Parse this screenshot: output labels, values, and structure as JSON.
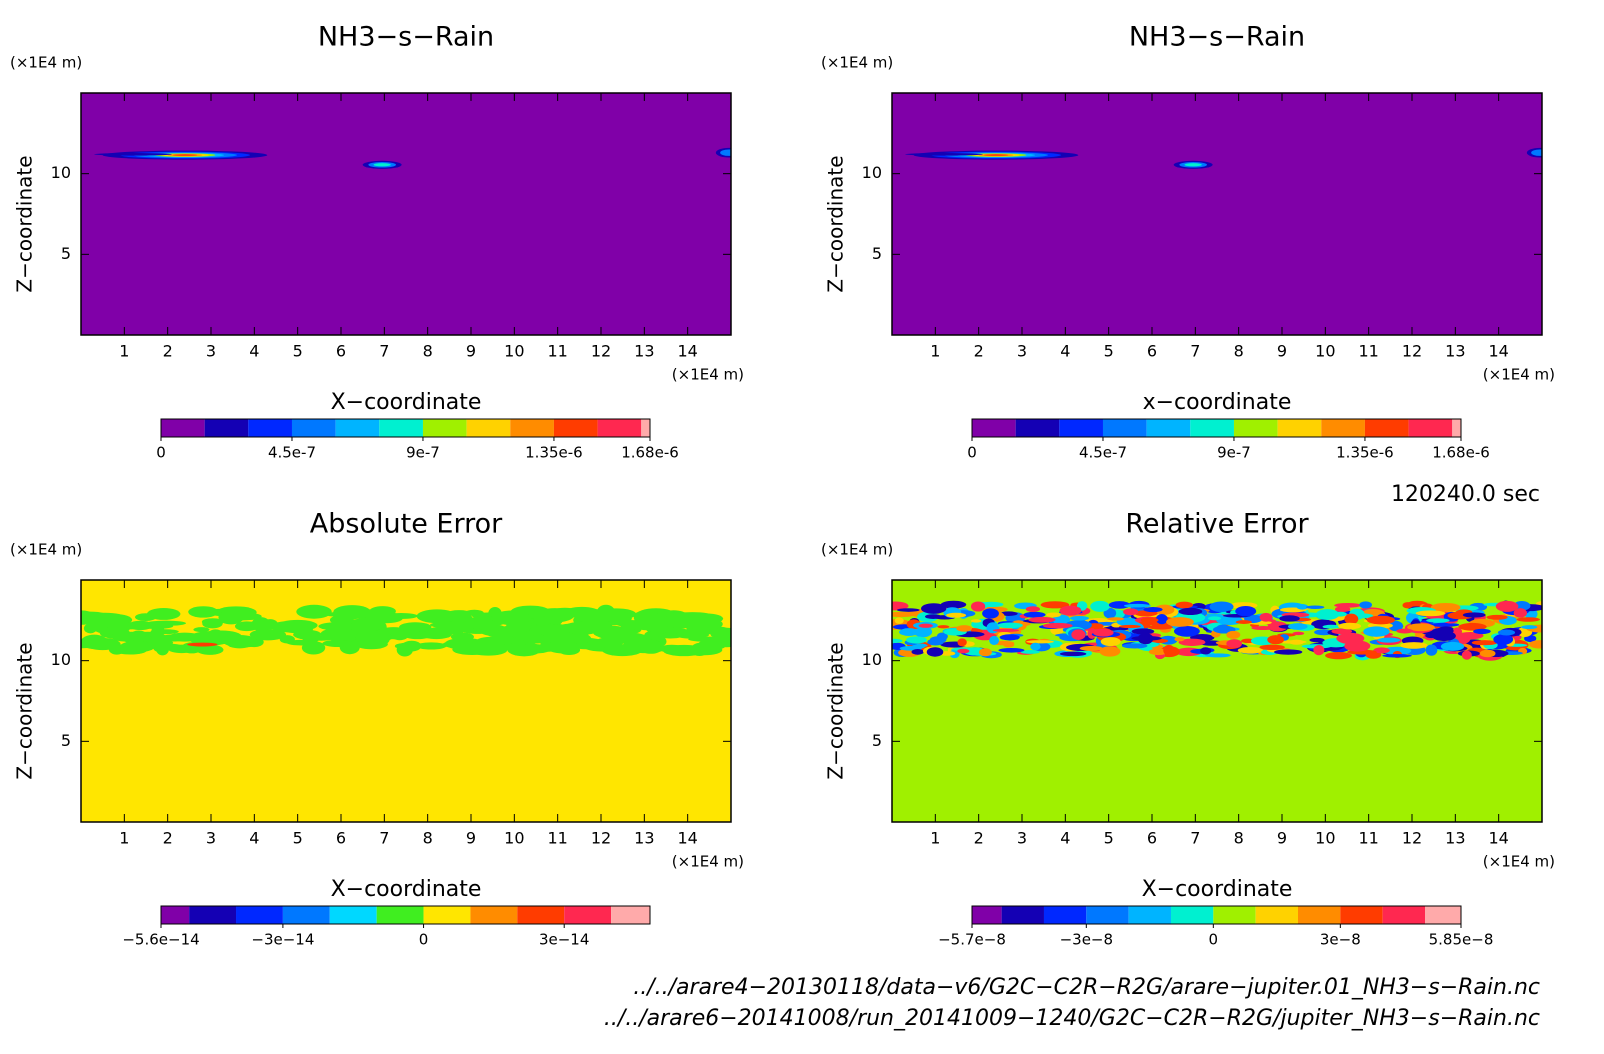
{
  "chart_data": [
    {
      "type": "contour",
      "title": "NH3−s−Rain",
      "xlabel": "X−coordinate",
      "ylabel": "Z−coordinate",
      "xunit": "(×1E4 m)",
      "yunit": "(×1E4 m)",
      "xlim": [
        0,
        15
      ],
      "ylim": [
        0,
        15
      ],
      "xticks": [
        1,
        2,
        3,
        4,
        5,
        6,
        7,
        8,
        9,
        10,
        11,
        12,
        13,
        14
      ],
      "yticks": [
        5,
        10
      ],
      "field_color": "#8000a8",
      "pattern": "rain",
      "colorbar": {
        "levels": [
          0,
          1.5e-07,
          3e-07,
          4.5e-07,
          6e-07,
          7.5e-07,
          9e-07,
          1.05e-06,
          1.2e-06,
          1.35e-06,
          1.5e-06,
          1.65e-06,
          1.68e-06
        ],
        "colors": [
          "#8000a8",
          "#1400b4",
          "#0028ff",
          "#0078ff",
          "#00b4ff",
          "#00f0d0",
          "#a0f000",
          "#ffd200",
          "#ff8c00",
          "#ff3c00",
          "#ff2850",
          "#ffaaaa"
        ],
        "ticks": [
          {
            "value": 0,
            "label": "0"
          },
          {
            "value": 4.5e-07,
            "label": "4.5e-7"
          },
          {
            "value": 9e-07,
            "label": "9e-7"
          },
          {
            "value": 1.35e-06,
            "label": "1.35e-6"
          },
          {
            "value": 1.68e-06,
            "label": "1.68e-6"
          }
        ]
      }
    },
    {
      "type": "contour",
      "title": "NH3−s−Rain",
      "xlabel": "x−coordinate",
      "ylabel": "Z−coordinate",
      "xunit": "(×1E4 m)",
      "yunit": "(×1E4 m)",
      "xlim": [
        0,
        15
      ],
      "ylim": [
        0,
        15
      ],
      "xticks": [
        1,
        2,
        3,
        4,
        5,
        6,
        7,
        8,
        9,
        10,
        11,
        12,
        13,
        14
      ],
      "yticks": [
        5,
        10
      ],
      "field_color": "#8000a8",
      "pattern": "rain",
      "colorbar": {
        "levels": [
          0,
          1.5e-07,
          3e-07,
          4.5e-07,
          6e-07,
          7.5e-07,
          9e-07,
          1.05e-06,
          1.2e-06,
          1.35e-06,
          1.5e-06,
          1.65e-06,
          1.68e-06
        ],
        "colors": [
          "#8000a8",
          "#1400b4",
          "#0028ff",
          "#0078ff",
          "#00b4ff",
          "#00f0d0",
          "#a0f000",
          "#ffd200",
          "#ff8c00",
          "#ff3c00",
          "#ff2850",
          "#ffaaaa"
        ],
        "ticks": [
          {
            "value": 0,
            "label": "0"
          },
          {
            "value": 4.5e-07,
            "label": "4.5e-7"
          },
          {
            "value": 9e-07,
            "label": "9e-7"
          },
          {
            "value": 1.35e-06,
            "label": "1.35e-6"
          },
          {
            "value": 1.68e-06,
            "label": "1.68e-6"
          }
        ]
      }
    },
    {
      "type": "contour",
      "title": "Absolute Error",
      "xlabel": "X−coordinate",
      "ylabel": "Z−coordinate",
      "xunit": "(×1E4 m)",
      "yunit": "(×1E4 m)",
      "xlim": [
        0,
        15
      ],
      "ylim": [
        0,
        15
      ],
      "xticks": [
        1,
        2,
        3,
        4,
        5,
        6,
        7,
        8,
        9,
        10,
        11,
        12,
        13,
        14
      ],
      "yticks": [
        5,
        10
      ],
      "field_color": "#ffe600",
      "pattern": "abs",
      "colorbar": {
        "levels": [
          -5.6e-14,
          -5e-14,
          -4e-14,
          -3e-14,
          -2e-14,
          -1e-14,
          0,
          1e-14,
          2e-14,
          3e-14,
          4e-14,
          4.83e-14
        ],
        "colors": [
          "#8000a8",
          "#1400b4",
          "#0028ff",
          "#0078ff",
          "#00d8ff",
          "#40ee20",
          "#ffe600",
          "#ff8c00",
          "#ff3c00",
          "#ff2850",
          "#ffaaaa"
        ],
        "ticks": [
          {
            "value": -5.6e-14,
            "label": "−5.6e−14"
          },
          {
            "value": -3e-14,
            "label": "−3e−14"
          },
          {
            "value": 0,
            "label": "0"
          },
          {
            "value": 3e-14,
            "label": "3e−14"
          }
        ]
      }
    },
    {
      "type": "contour",
      "title": "Relative Error",
      "xlabel": "X−coordinate",
      "ylabel": "Z−coordinate",
      "xunit": "(×1E4 m)",
      "yunit": "(×1E4 m)",
      "xlim": [
        0,
        15
      ],
      "ylim": [
        0,
        15
      ],
      "xticks": [
        1,
        2,
        3,
        4,
        5,
        6,
        7,
        8,
        9,
        10,
        11,
        12,
        13,
        14
      ],
      "yticks": [
        5,
        10
      ],
      "field_color": "#a0f000",
      "pattern": "rel",
      "colorbar": {
        "levels": [
          -5.7e-08,
          -5e-08,
          -4e-08,
          -3e-08,
          -2e-08,
          -1e-08,
          0,
          1e-08,
          2e-08,
          3e-08,
          4e-08,
          5e-08,
          5.85e-08
        ],
        "colors": [
          "#8000a8",
          "#1400b4",
          "#0028ff",
          "#0078ff",
          "#00b4ff",
          "#00f0d0",
          "#a0f000",
          "#ffd200",
          "#ff8c00",
          "#ff3c00",
          "#ff2850",
          "#ffaaaa"
        ],
        "ticks": [
          {
            "value": -5.7e-08,
            "label": "−5.7e−8"
          },
          {
            "value": -3e-08,
            "label": "−3e−8"
          },
          {
            "value": 0,
            "label": "0"
          },
          {
            "value": 3e-08,
            "label": "3e−8"
          },
          {
            "value": 5.85e-08,
            "label": "5.85e−8"
          }
        ]
      }
    }
  ],
  "time_label": "120240.0 sec",
  "files": [
    "../../arare4−20130118/data−v6/G2C−C2R−R2G/arare−jupiter.01_NH3−s−Rain.nc",
    "../../arare6−20141008/run_20141009−1240/G2C−C2R−R2G/jupiter_NH3−s−Rain.nc"
  ]
}
